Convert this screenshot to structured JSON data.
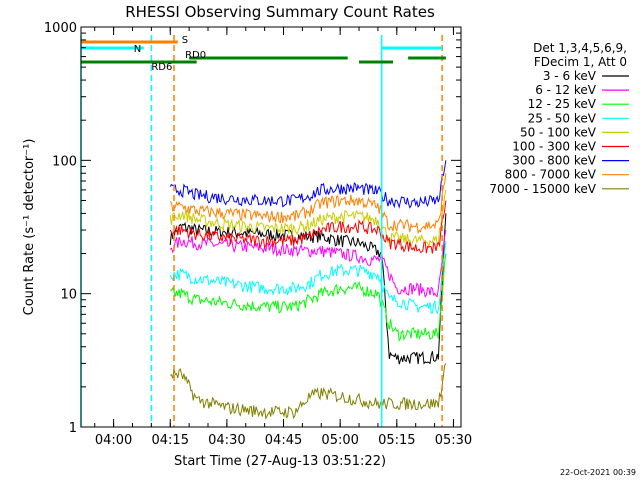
{
  "chart_data": {
    "type": "line",
    "title": "RHESSI Observing Summary Count Rates",
    "xlabel": "Start Time (27-Aug-13 03:51:22)",
    "ylabel": "Count Rate (s⁻¹ detector⁻¹)",
    "y_scale": "log",
    "ylim": [
      1,
      1000
    ],
    "xlim": [
      "03:51:22",
      "05:32:00"
    ],
    "x_ticks": [
      "04:00",
      "04:15",
      "04:30",
      "04:45",
      "05:00",
      "05:15",
      "05:30"
    ],
    "y_ticks": [
      "1",
      "10",
      "100",
      "1000"
    ],
    "grid": false,
    "legend_header": [
      "Det 1,3,4,5,6,9,",
      "FDecim 1, Att 0"
    ],
    "legend_position": "right",
    "series": [
      {
        "name": "3 - 6 keV",
        "color": "#000000",
        "x": [
          "04:15",
          "04:18",
          "04:22",
          "04:30",
          "04:40",
          "04:50",
          "04:55",
          "05:00",
          "05:05",
          "05:08",
          "05:11",
          "05:13",
          "05:15",
          "05:20",
          "05:26",
          "05:28"
        ],
        "y": [
          26,
          32,
          30,
          29,
          28,
          27,
          27,
          25,
          24,
          22,
          20,
          3.5,
          3.3,
          3.3,
          3.4,
          40
        ]
      },
      {
        "name": "6 - 12 keV",
        "color": "#ff00ff",
        "x": [
          "04:15",
          "04:18",
          "04:22",
          "04:30",
          "04:40",
          "04:50",
          "04:55",
          "05:00",
          "05:05",
          "05:08",
          "05:11",
          "05:15",
          "05:20",
          "05:26",
          "05:28"
        ],
        "y": [
          22,
          25,
          24,
          23,
          22,
          21,
          21,
          20,
          19,
          18,
          18,
          11,
          11,
          10,
          30
        ]
      },
      {
        "name": "12 - 25 keV",
        "color": "#00ff00",
        "x": [
          "04:15",
          "04:18",
          "04:22",
          "04:30",
          "04:40",
          "04:48",
          "04:52",
          "04:55",
          "05:00",
          "05:05",
          "05:10",
          "05:13",
          "05:15",
          "05:20",
          "05:26",
          "05:28"
        ],
        "y": [
          10,
          10,
          9,
          8.5,
          8,
          8,
          9,
          10,
          11,
          11,
          10,
          6,
          5,
          5,
          5,
          20
        ]
      },
      {
        "name": "25 - 50 keV",
        "color": "#00ffff",
        "x": [
          "04:15",
          "04:18",
          "04:22",
          "04:30",
          "04:40",
          "04:48",
          "04:52",
          "04:55",
          "05:00",
          "05:05",
          "05:10",
          "05:13",
          "05:15",
          "05:20",
          "05:26",
          "05:28"
        ],
        "y": [
          14,
          14,
          13,
          12,
          11,
          11,
          12,
          14,
          15,
          15,
          14,
          9,
          9,
          8,
          8,
          25
        ]
      },
      {
        "name": "50 - 100 keV",
        "color": "#cccc00",
        "x": [
          "04:15",
          "04:18",
          "04:22",
          "04:30",
          "04:40",
          "04:48",
          "04:52",
          "04:55",
          "05:00",
          "05:05",
          "05:10",
          "05:13",
          "05:15",
          "05:20",
          "05:26",
          "05:28"
        ],
        "y": [
          36,
          40,
          36,
          33,
          31,
          31,
          33,
          36,
          38,
          38,
          36,
          26,
          26,
          25,
          25,
          60
        ]
      },
      {
        "name": "100 - 300 keV",
        "color": "#ff0000",
        "x": [
          "04:15",
          "04:18",
          "04:22",
          "04:30",
          "04:40",
          "04:48",
          "04:52",
          "04:55",
          "05:00",
          "05:05",
          "05:10",
          "05:13",
          "05:15",
          "05:20",
          "05:26",
          "05:28"
        ],
        "y": [
          30,
          30,
          28,
          26,
          25,
          25,
          27,
          30,
          32,
          32,
          30,
          24,
          24,
          22,
          22,
          50
        ]
      },
      {
        "name": "300 - 800 keV",
        "color": "#0000ff",
        "x": [
          "04:15",
          "04:18",
          "04:22",
          "04:30",
          "04:40",
          "04:48",
          "04:52",
          "04:55",
          "05:00",
          "05:05",
          "05:10",
          "05:13",
          "05:15",
          "05:20",
          "05:26",
          "05:28"
        ],
        "y": [
          60,
          60,
          55,
          52,
          50,
          50,
          55,
          60,
          62,
          62,
          58,
          50,
          50,
          48,
          50,
          100
        ]
      },
      {
        "name": "800 - 7000 keV",
        "color": "#ff8000",
        "x": [
          "04:15",
          "04:18",
          "04:22",
          "04:30",
          "04:40",
          "04:48",
          "04:52",
          "04:55",
          "05:00",
          "05:05",
          "05:10",
          "05:13",
          "05:15",
          "05:20",
          "05:26",
          "05:28"
        ],
        "y": [
          45,
          45,
          42,
          40,
          38,
          38,
          42,
          48,
          50,
          50,
          45,
          33,
          33,
          32,
          33,
          80
        ]
      },
      {
        "name": "7000 - 15000 keV",
        "color": "#808000",
        "x": [
          "04:15",
          "04:18",
          "04:22",
          "04:30",
          "04:40",
          "04:48",
          "04:52",
          "04:55",
          "05:00",
          "05:05",
          "05:10",
          "05:26",
          "05:28"
        ],
        "y": [
          2.5,
          2.5,
          1.6,
          1.4,
          1.3,
          1.3,
          1.7,
          1.8,
          1.7,
          1.6,
          1.5,
          1.5,
          3
        ]
      }
    ],
    "flags": [
      {
        "label": "S",
        "color": "#ff8000",
        "segments": [
          [
            "03:51:22",
            "04:17"
          ]
        ]
      },
      {
        "label": "N",
        "color": "#00ffff",
        "segments": [
          [
            "03:51:22",
            "04:08"
          ],
          [
            "05:11",
            "05:27"
          ]
        ]
      },
      {
        "label": "RD0",
        "color": "#008000",
        "segments": [
          [
            "04:20",
            "05:02"
          ],
          [
            "05:18",
            "05:28"
          ]
        ]
      },
      {
        "label": "RD6",
        "color": "#008000",
        "segments": [
          [
            "03:51:22",
            "04:16"
          ],
          [
            "04:16",
            "04:22"
          ],
          [
            "05:05",
            "05:14"
          ]
        ]
      }
    ],
    "vertical_markers": [
      {
        "x": "03:51:22",
        "color": "#00ffff",
        "style": "solid"
      },
      {
        "x": "04:10",
        "color": "#00ffff",
        "style": "dashed"
      },
      {
        "x": "04:16",
        "color": "#ff8000",
        "style": "dashed"
      },
      {
        "x": "05:11",
        "color": "#00ffff",
        "style": "solid"
      },
      {
        "x": "05:27",
        "color": "#ff8000",
        "style": "dashed"
      }
    ]
  },
  "footer_timestamp": "22-Oct-2021 00:39"
}
